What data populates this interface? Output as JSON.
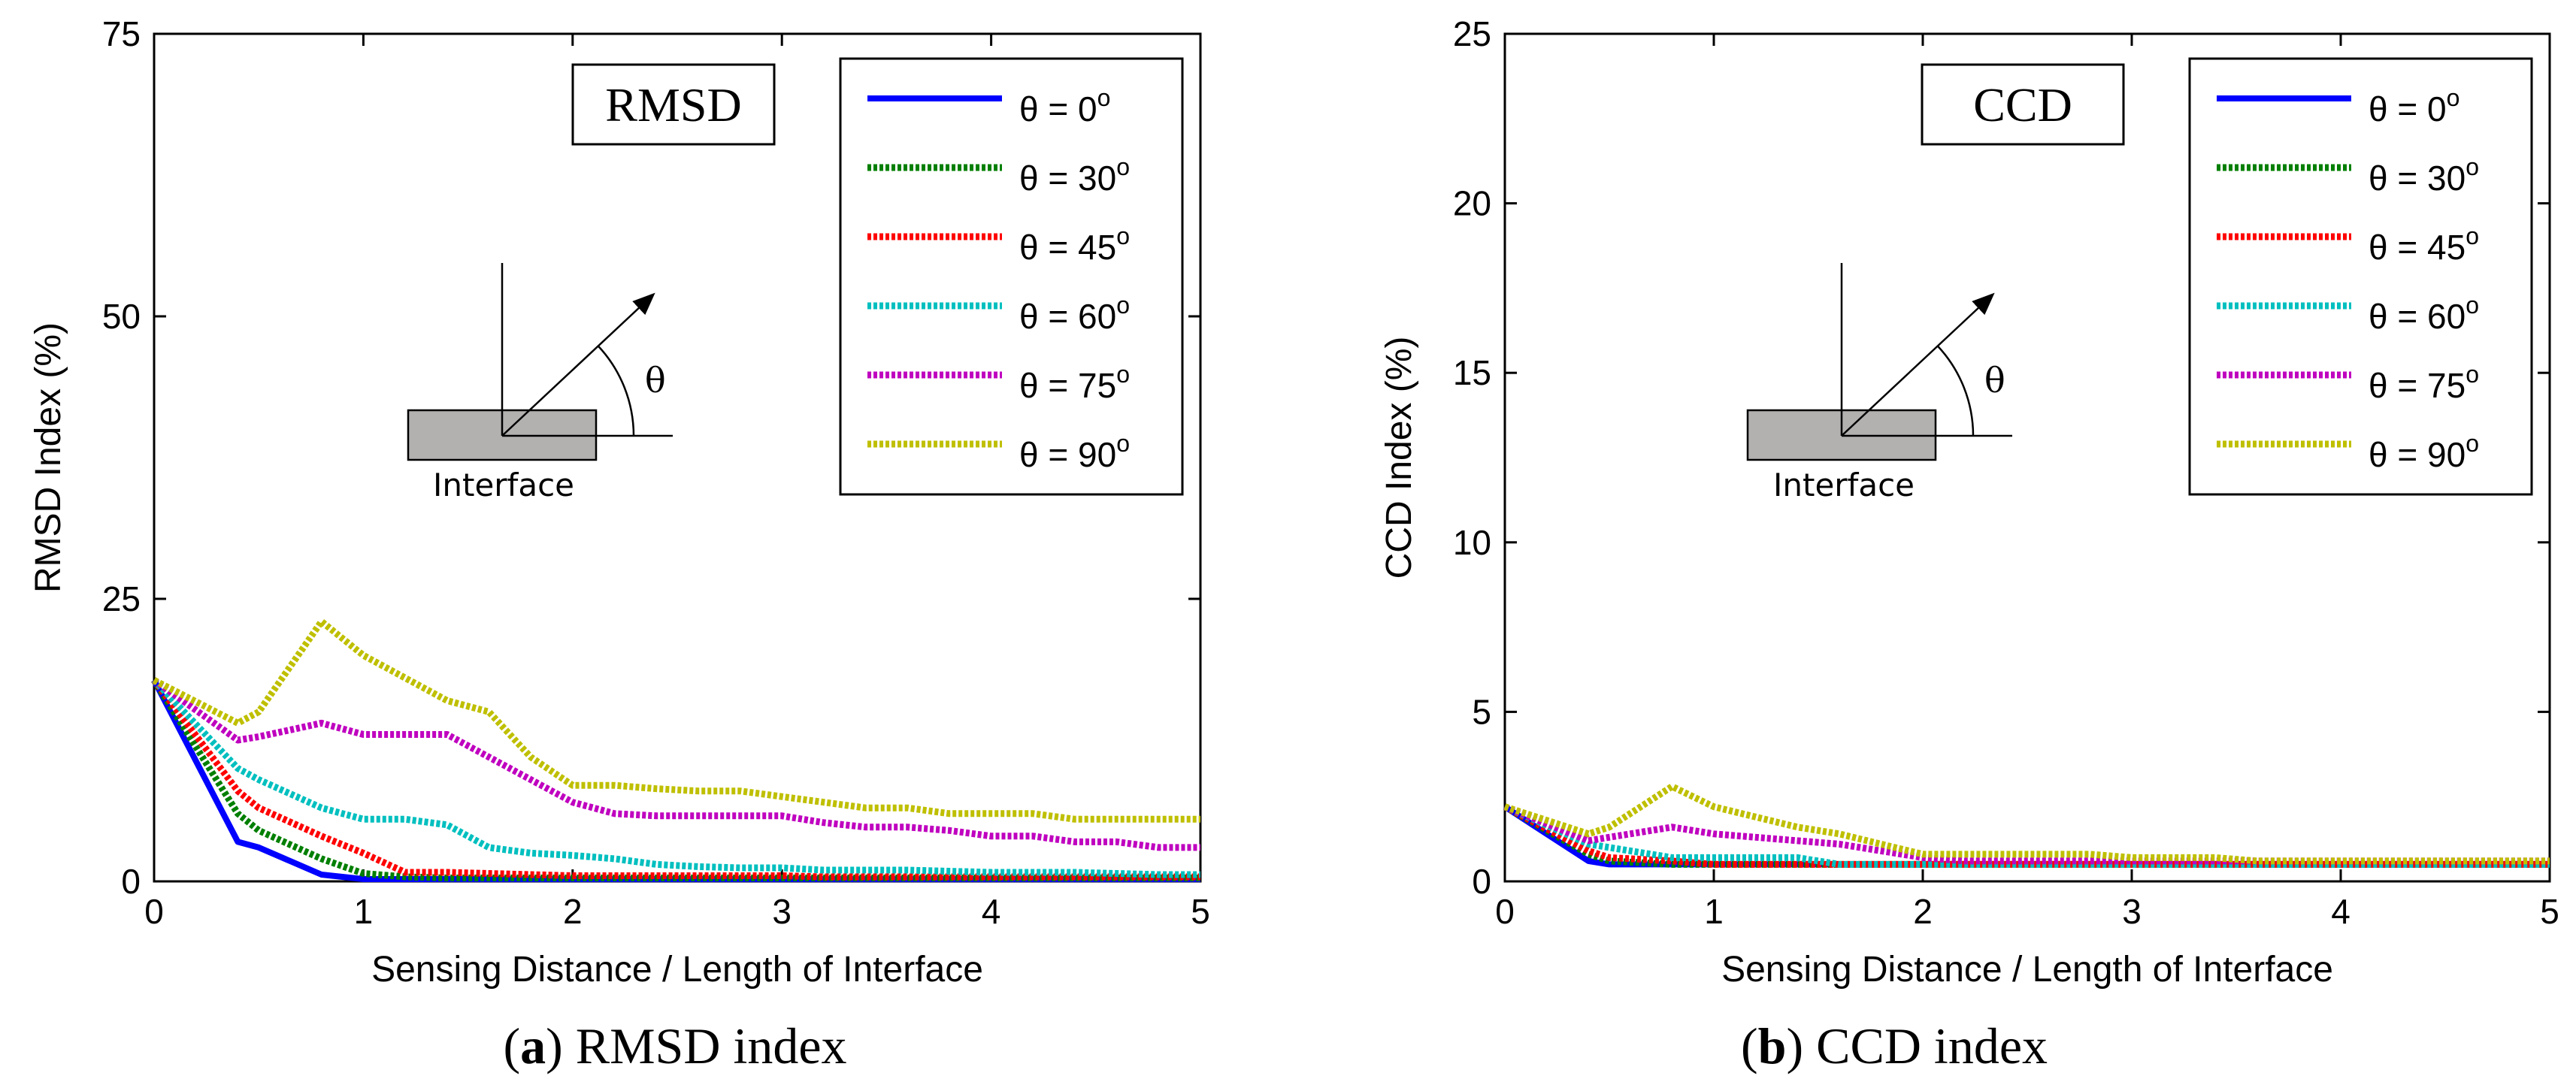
{
  "chart_data": [
    {
      "type": "line",
      "id": "a",
      "panel_letter": "a",
      "panel_caption": " RMSD index",
      "xlabel": "Sensing Distance / Length of Interface",
      "ylabel": "RMSD Index (%)",
      "xlim": [
        0,
        5
      ],
      "ylim": [
        0,
        75
      ],
      "xticks": [
        0,
        1,
        2,
        3,
        4,
        5
      ],
      "yticks": [
        0,
        25,
        50,
        75
      ],
      "tag": "RMSD",
      "inset": {
        "interface_label": "Interface",
        "angle_label": "θ"
      },
      "legend_position": "top-right",
      "x": [
        0,
        0.4,
        0.5,
        0.8,
        1.0,
        1.2,
        1.4,
        1.6,
        1.8,
        2.0,
        2.2,
        2.4,
        2.6,
        2.8,
        3.0,
        3.2,
        3.4,
        3.6,
        3.8,
        4.0,
        4.2,
        4.4,
        4.6,
        4.8,
        5.0
      ],
      "series": [
        {
          "name": "θ = 0",
          "sup": "o",
          "color": "#0000ff",
          "style": "solid",
          "values": [
            17.8,
            3.5,
            3.0,
            0.6,
            0.2,
            0.2,
            0.2,
            0.2,
            0.2,
            0.2,
            0.2,
            0.2,
            0.2,
            0.2,
            0.2,
            0.2,
            0.2,
            0.2,
            0.2,
            0.2,
            0.2,
            0.2,
            0.2,
            0.2,
            0.2
          ]
        },
        {
          "name": "θ = 30",
          "sup": "o",
          "color": "#007f00",
          "style": "dotted",
          "values": [
            17.8,
            6.0,
            4.5,
            2.0,
            0.7,
            0.4,
            0.3,
            0.3,
            0.3,
            0.3,
            0.3,
            0.3,
            0.3,
            0.3,
            0.3,
            0.3,
            0.3,
            0.3,
            0.3,
            0.3,
            0.3,
            0.3,
            0.3,
            0.3,
            0.3
          ]
        },
        {
          "name": "θ = 45",
          "sup": "o",
          "color": "#ff0000",
          "style": "dotted",
          "values": [
            17.8,
            8.0,
            6.5,
            4.0,
            2.5,
            0.8,
            0.8,
            0.7,
            0.6,
            0.5,
            0.5,
            0.5,
            0.5,
            0.5,
            0.5,
            0.4,
            0.4,
            0.4,
            0.4,
            0.4,
            0.4,
            0.4,
            0.4,
            0.4,
            0.4
          ]
        },
        {
          "name": "θ = 60",
          "sup": "o",
          "color": "#00bfbf",
          "style": "dotted",
          "values": [
            17.8,
            10.0,
            9.0,
            6.5,
            5.5,
            5.5,
            5.0,
            3.0,
            2.5,
            2.3,
            2.0,
            1.5,
            1.3,
            1.2,
            1.2,
            1.0,
            1.0,
            1.0,
            0.9,
            0.8,
            0.8,
            0.8,
            0.7,
            0.6,
            0.6
          ]
        },
        {
          "name": "θ = 75",
          "sup": "o",
          "color": "#bf00bf",
          "style": "dotted",
          "values": [
            17.8,
            12.5,
            12.8,
            14.0,
            13.0,
            13.0,
            13.0,
            11.0,
            9.0,
            7.0,
            6.0,
            5.8,
            5.8,
            5.8,
            5.8,
            5.2,
            4.8,
            4.8,
            4.5,
            4.0,
            4.0,
            3.5,
            3.5,
            3.0,
            3.0
          ]
        },
        {
          "name": "θ = 90",
          "sup": "o",
          "color": "#bfbf00",
          "style": "dotted",
          "values": [
            17.8,
            14.0,
            15.0,
            23.0,
            20.0,
            18.0,
            16.0,
            15.0,
            11.0,
            8.5,
            8.5,
            8.2,
            8.0,
            8.0,
            7.5,
            7.0,
            6.5,
            6.5,
            6.0,
            6.0,
            6.0,
            5.5,
            5.5,
            5.5,
            5.5
          ]
        }
      ]
    },
    {
      "type": "line",
      "id": "b",
      "panel_letter": "b",
      "panel_caption": " CCD index",
      "xlabel": "Sensing Distance / Length of Interface",
      "ylabel": "CCD Index (%)",
      "xlim": [
        0,
        5
      ],
      "ylim": [
        0,
        25
      ],
      "xticks": [
        0,
        1,
        2,
        3,
        4,
        5
      ],
      "yticks": [
        0,
        5,
        10,
        15,
        20,
        25
      ],
      "tag": "CCD",
      "inset": {
        "interface_label": "Interface",
        "angle_label": "θ"
      },
      "legend_position": "top-right",
      "x": [
        0,
        0.4,
        0.5,
        0.8,
        1.0,
        1.2,
        1.4,
        1.6,
        1.8,
        2.0,
        2.2,
        2.4,
        2.6,
        2.8,
        3.0,
        3.2,
        3.4,
        3.6,
        3.8,
        4.0,
        4.2,
        4.4,
        4.6,
        4.8,
        5.0
      ],
      "series": [
        {
          "name": "θ = 0",
          "sup": "o",
          "color": "#0000ff",
          "style": "solid",
          "values": [
            2.2,
            0.6,
            0.5,
            0.5,
            0.5,
            0.5,
            0.5,
            0.5,
            0.5,
            0.5,
            0.5,
            0.5,
            0.5,
            0.5,
            0.5,
            0.5,
            0.5,
            0.5,
            0.5,
            0.5,
            0.5,
            0.5,
            0.5,
            0.5,
            0.5
          ]
        },
        {
          "name": "θ = 30",
          "sup": "o",
          "color": "#007f00",
          "style": "dotted",
          "values": [
            2.2,
            0.8,
            0.6,
            0.5,
            0.5,
            0.5,
            0.5,
            0.5,
            0.5,
            0.5,
            0.5,
            0.5,
            0.5,
            0.5,
            0.5,
            0.5,
            0.5,
            0.5,
            0.5,
            0.5,
            0.5,
            0.5,
            0.5,
            0.5,
            0.5
          ]
        },
        {
          "name": "θ = 45",
          "sup": "o",
          "color": "#ff0000",
          "style": "dotted",
          "values": [
            2.2,
            0.9,
            0.7,
            0.6,
            0.5,
            0.5,
            0.5,
            0.5,
            0.5,
            0.5,
            0.5,
            0.5,
            0.5,
            0.5,
            0.5,
            0.5,
            0.5,
            0.5,
            0.5,
            0.5,
            0.5,
            0.5,
            0.5,
            0.5,
            0.5
          ]
        },
        {
          "name": "θ = 60",
          "sup": "o",
          "color": "#00bfbf",
          "style": "dotted",
          "values": [
            2.2,
            1.1,
            1.0,
            0.7,
            0.7,
            0.7,
            0.7,
            0.5,
            0.5,
            0.5,
            0.5,
            0.5,
            0.5,
            0.5,
            0.5,
            0.5,
            0.5,
            0.5,
            0.5,
            0.5,
            0.5,
            0.5,
            0.5,
            0.5,
            0.5
          ]
        },
        {
          "name": "θ = 75",
          "sup": "o",
          "color": "#bf00bf",
          "style": "dotted",
          "values": [
            2.2,
            1.2,
            1.3,
            1.6,
            1.4,
            1.3,
            1.2,
            1.1,
            0.9,
            0.7,
            0.6,
            0.6,
            0.6,
            0.6,
            0.6,
            0.6,
            0.6,
            0.6,
            0.6,
            0.6,
            0.6,
            0.6,
            0.6,
            0.6,
            0.6
          ]
        },
        {
          "name": "θ = 90",
          "sup": "o",
          "color": "#bfbf00",
          "style": "dotted",
          "values": [
            2.2,
            1.4,
            1.6,
            2.8,
            2.2,
            1.9,
            1.6,
            1.4,
            1.1,
            0.8,
            0.8,
            0.8,
            0.8,
            0.8,
            0.7,
            0.7,
            0.7,
            0.6,
            0.6,
            0.6,
            0.6,
            0.6,
            0.6,
            0.6,
            0.6
          ]
        }
      ]
    }
  ]
}
